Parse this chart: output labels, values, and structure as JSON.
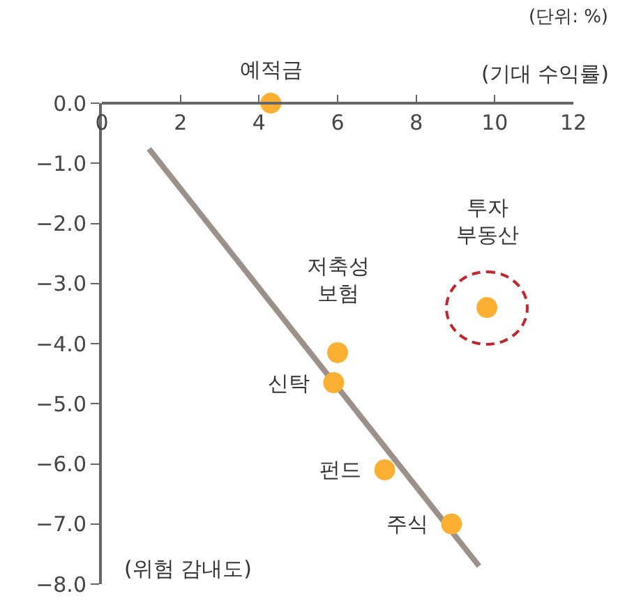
{
  "chart_data": {
    "type": "scatter",
    "title": "(단위: %)",
    "xlabel": "(기대 수익률)",
    "ylabel": "(위험 감내도)",
    "xlim": [
      0,
      12
    ],
    "xticks": [
      0,
      2,
      4,
      6,
      8,
      10,
      12
    ],
    "ylim": [
      -8,
      0
    ],
    "yticks": [
      {
        "value": 0,
        "label": "0.0"
      },
      {
        "value": -1,
        "label": "−1.0"
      },
      {
        "value": -2,
        "label": "−2.0"
      },
      {
        "value": -3,
        "label": "−3.0"
      },
      {
        "value": -4,
        "label": "−4.0"
      },
      {
        "value": -5,
        "label": "−5.0"
      },
      {
        "value": -6,
        "label": "−6.0"
      },
      {
        "value": -7,
        "label": "−7.0"
      },
      {
        "value": -8,
        "label": "−8.0"
      }
    ],
    "grid": false,
    "marker": "circle",
    "series": [
      {
        "type": "line",
        "marker": "none",
        "color": "#9b918a",
        "x": [
          1.2,
          9.6
        ],
        "values": [
          -0.76,
          -7.7
        ]
      },
      {
        "color": "#fbb034",
        "x": [
          4.3,
          9.8,
          6.0,
          5.9,
          7.2,
          8.9
        ],
        "values": [
          0,
          -3.4,
          -4.15,
          -4.65,
          -6.1,
          -7.0
        ]
      }
    ],
    "annotations": [
      {
        "text": "예적금",
        "x": 4.3,
        "y": 0
      },
      {
        "text": "투자\n부동산",
        "x": 9.8,
        "y": -3.4
      },
      {
        "text": "저축성\n보험",
        "x": 6.0,
        "y": -4.15
      },
      {
        "text": "신탁",
        "x": 5.9,
        "y": -4.65
      },
      {
        "text": "펀드",
        "x": 7.2,
        "y": -6.1
      },
      {
        "text": "주식",
        "x": 8.9,
        "y": -7.0
      }
    ]
  }
}
